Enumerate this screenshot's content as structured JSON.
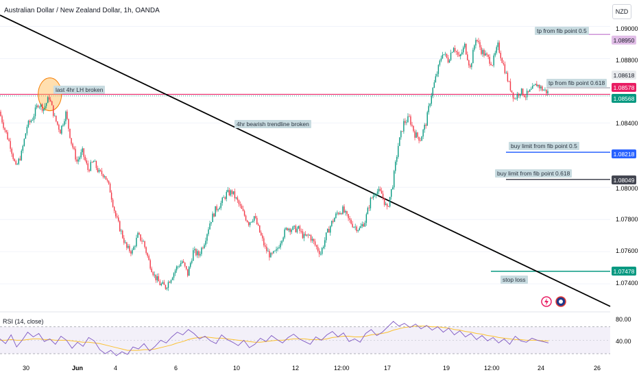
{
  "header": {
    "title": "Australian Dollar / New Zealand Dollar, 1h, OANDA",
    "currency": "NZD"
  },
  "chart_data": {
    "type": "candlestick",
    "title": "Australian Dollar / New Zealand Dollar, 1h, OANDA",
    "y_ticks": [
      "1.09000",
      "1.08800",
      "1.08400",
      "1.08000",
      "1.07800",
      "1.07600",
      "1.07400"
    ],
    "ylim": [
      1.0723,
      1.0913
    ],
    "x_ticks": [
      "30",
      "Jun",
      "4",
      "6",
      "10",
      "12",
      "12:00",
      "17",
      "19",
      "12:00",
      "24",
      "26"
    ],
    "price_labels": [
      {
        "value": "1.08950",
        "color": "#e1bee7",
        "text_color": "#131722"
      },
      {
        "value": "1.08618",
        "color": "#e8eaed",
        "text_color": "#131722"
      },
      {
        "value": "1.08578",
        "color": "#e91e63",
        "text_color": "#ffffff"
      },
      {
        "value": "1.08568",
        "color": "#089981",
        "text_color": "#ffffff"
      },
      {
        "value": "1.08218",
        "color": "#2962ff",
        "text_color": "#ffffff"
      },
      {
        "value": "1.08049",
        "color": "#434651",
        "text_color": "#ffffff"
      },
      {
        "value": "1.07478",
        "color": "#089981",
        "text_color": "#ffffff"
      }
    ],
    "annotations": [
      "last 4hr LH broken",
      "4hr bearish trendline broken",
      "tp from fib point 0.5",
      "tp from fib point 0.618",
      "buy limit from fib point 0.5",
      "buy limit from fib point 0.618",
      "stop loss"
    ],
    "levels": [
      {
        "name": "tp from fib point 0.5",
        "value": 1.0895,
        "color": "#ce93d8"
      },
      {
        "name": "tp from fib point 0.618",
        "value": 1.08618,
        "color": "#b2b5be"
      },
      {
        "name": "last 4hr LH broken",
        "value": 1.08578,
        "color": "#e91e63"
      },
      {
        "name": "buy limit from fib point 0.5",
        "value": 1.08218,
        "color": "#2962ff"
      },
      {
        "name": "buy limit from fib point 0.618",
        "value": 1.08049,
        "color": "#434651"
      },
      {
        "name": "stop loss",
        "value": 1.07478,
        "color": "#089981"
      }
    ],
    "trendline": {
      "from": 1.0907,
      "to": 1.0726
    },
    "price_path": [
      1.0847,
      1.0836,
      1.0826,
      1.0812,
      1.0821,
      1.0838,
      1.0843,
      1.0852,
      1.0849,
      1.0856,
      1.0843,
      1.0835,
      1.0846,
      1.0828,
      1.0816,
      1.0822,
      1.0811,
      1.0816,
      1.0809,
      1.0808,
      1.0798,
      1.0782,
      1.0772,
      1.0762,
      1.076,
      1.077,
      1.0766,
      1.0754,
      1.0745,
      1.074,
      1.0738,
      1.0744,
      1.075,
      1.0754,
      1.0746,
      1.076,
      1.0758,
      1.0766,
      1.0778,
      1.0786,
      1.079,
      1.0796,
      1.0797,
      1.0791,
      1.0784,
      1.0778,
      1.0782,
      1.0772,
      1.0762,
      1.0757,
      1.076,
      1.0769,
      1.0775,
      1.0774,
      1.0774,
      1.0769,
      1.077,
      1.0764,
      1.0759,
      1.077,
      1.0778,
      1.0784,
      1.0786,
      1.078,
      1.0776,
      1.0774,
      1.0779,
      1.0792,
      1.0798,
      1.0796,
      1.0786,
      1.0802,
      1.0826,
      1.084,
      1.0843,
      1.0833,
      1.083,
      1.084,
      1.0858,
      1.0871,
      1.0884,
      1.0879,
      1.0888,
      1.088,
      1.0888,
      1.0874,
      1.0893,
      1.0885,
      1.0881,
      1.0877,
      1.0888,
      1.0876,
      1.0864,
      1.0855,
      1.086,
      1.0857,
      1.086,
      1.0864,
      1.0861,
      1.0859
    ],
    "rsi": {
      "label": "RSI (14, close)",
      "ticks": [
        "80.00",
        "40.00"
      ],
      "range": [
        30,
        85
      ],
      "upper": 70,
      "lower": 30,
      "values": [
        52,
        45,
        58,
        40,
        50,
        62,
        55,
        60,
        48,
        52,
        44,
        56,
        50,
        38,
        47,
        41,
        54,
        49,
        36,
        30,
        35,
        27,
        33,
        29,
        40,
        37,
        45,
        34,
        41,
        50,
        46,
        55,
        62,
        58,
        66,
        60,
        52,
        56,
        49,
        45,
        58,
        51,
        47,
        42,
        50,
        39,
        44,
        53,
        48,
        57,
        51,
        46,
        54,
        59,
        52,
        48,
        44,
        55,
        50,
        58,
        63,
        55,
        61,
        48,
        52,
        47,
        60,
        66,
        57,
        62,
        70,
        78,
        71,
        75,
        69,
        74,
        67,
        72,
        65,
        70,
        62,
        68,
        58,
        64,
        55,
        60,
        51,
        57,
        49,
        54,
        46,
        52,
        44,
        56,
        49,
        47,
        53,
        50,
        48,
        46
      ],
      "ma": [
        50,
        50,
        51,
        50,
        50,
        51,
        52,
        52,
        51,
        51,
        50,
        50,
        50,
        49,
        48,
        47,
        47,
        46,
        45,
        43,
        41,
        39,
        37,
        35,
        35,
        35,
        36,
        36,
        37,
        39,
        41,
        43,
        46,
        48,
        51,
        53,
        54,
        55,
        54,
        53,
        53,
        52,
        51,
        50,
        49,
        48,
        47,
        47,
        48,
        49,
        50,
        50,
        51,
        52,
        52,
        52,
        51,
        51,
        51,
        52,
        54,
        55,
        56,
        56,
        55,
        55,
        56,
        58,
        59,
        60,
        62,
        65,
        67,
        69,
        70,
        71,
        71,
        71,
        70,
        70,
        69,
        68,
        66,
        65,
        63,
        62,
        60,
        59,
        57,
        56,
        54,
        53,
        52,
        51,
        51,
        50,
        50,
        50,
        49,
        49
      ]
    }
  }
}
